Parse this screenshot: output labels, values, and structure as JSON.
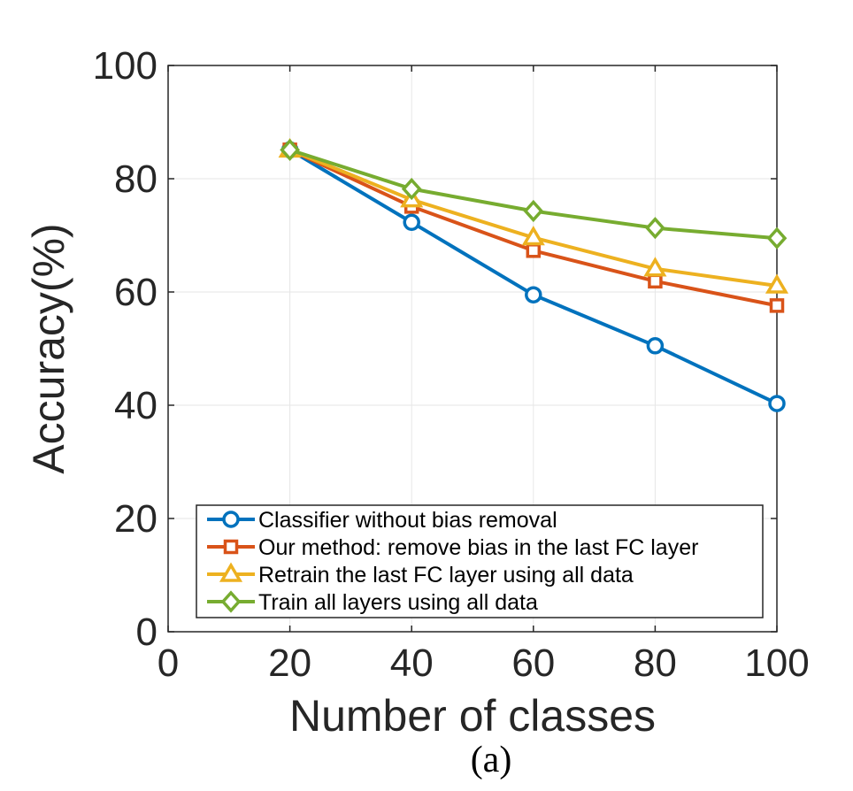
{
  "chart_data": {
    "type": "line",
    "xlabel": "Number of classes",
    "ylabel": "Accuracy(%)",
    "caption": "(a)",
    "xlim": [
      0,
      100
    ],
    "ylim": [
      0,
      100
    ],
    "xticks": [
      0,
      20,
      40,
      60,
      80,
      100
    ],
    "yticks": [
      0,
      20,
      40,
      60,
      80,
      100
    ],
    "grid": true,
    "legend_position": "bottom-center",
    "x": [
      20,
      40,
      60,
      80,
      100
    ],
    "series": [
      {
        "name": "Classifier without bias removal",
        "marker": "circle",
        "color": "#0072BD",
        "values": [
          85.1,
          72.3,
          59.5,
          50.5,
          40.3
        ]
      },
      {
        "name": "Our method: remove bias in the last FC layer",
        "marker": "square",
        "color": "#D95319",
        "values": [
          85.1,
          75.1,
          67.3,
          61.9,
          57.6
        ]
      },
      {
        "name": "Retrain the last FC layer using all data",
        "marker": "triangle",
        "color": "#EDB120",
        "values": [
          85.1,
          76.3,
          69.6,
          64.1,
          61.1
        ]
      },
      {
        "name": "Train all layers using all data",
        "marker": "diamond",
        "color": "#77AC30",
        "values": [
          85.1,
          78.2,
          74.3,
          71.3,
          69.5
        ]
      }
    ]
  }
}
